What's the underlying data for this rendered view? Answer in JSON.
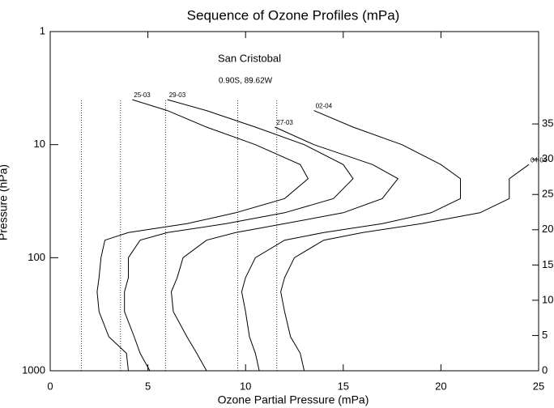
{
  "chart_data": {
    "type": "line",
    "title": "Sequence of Ozone Profiles (mPa)",
    "xlabel": "Ozone Partial Pressure (mPa)",
    "ylabel": "Pressure (hPa)",
    "annotations": [
      "San Cristobal",
      "0.90S, 89.62W"
    ],
    "xlim": [
      0,
      25
    ],
    "xticks": [
      0,
      5,
      10,
      15,
      20,
      25
    ],
    "ylim": [
      1000,
      1
    ],
    "yticks": [
      1,
      10,
      100,
      1000
    ],
    "log_y": true,
    "y2lim": [
      0,
      48.1
    ],
    "y2ticks": [
      0,
      5,
      10,
      15,
      20,
      25,
      30,
      35
    ],
    "grid": false,
    "series": [
      {
        "name": "25-03",
        "color": "#000000",
        "baseline": 1.6,
        "x": [
          4.0,
          3.9,
          3.0,
          2.5,
          2.4,
          2.5,
          2.6,
          2.8,
          4.0,
          7.0,
          9.5,
          12.0,
          13.2,
          12.8,
          10.5,
          8.0,
          6.0,
          4.2
        ],
        "pressure": [
          1000,
          700,
          500,
          300,
          200,
          150,
          100,
          70,
          60,
          50,
          40,
          30,
          20,
          15,
          10,
          7,
          5,
          4
        ]
      },
      {
        "name": "29-03",
        "color": "#000000",
        "baseline": 3.6,
        "x": [
          5.1,
          4.6,
          4.3,
          3.8,
          3.8,
          4.0,
          4.0,
          4.6,
          6.0,
          9.0,
          12.0,
          14.5,
          15.5,
          15.0,
          13.0,
          10.5,
          8.0,
          6.0
        ],
        "pressure": [
          1000,
          700,
          500,
          300,
          200,
          150,
          100,
          70,
          60,
          50,
          40,
          30,
          20,
          15,
          10,
          7,
          5,
          4
        ]
      },
      {
        "name": "27-03",
        "color": "#000000",
        "baseline": 5.9,
        "x": [
          8.0,
          7.5,
          7.0,
          6.3,
          6.2,
          6.5,
          6.8,
          8.0,
          9.5,
          12.0,
          15.0,
          17.0,
          17.8,
          16.5,
          13.5,
          11.5
        ],
        "pressure": [
          1000,
          700,
          500,
          300,
          200,
          150,
          100,
          70,
          60,
          50,
          40,
          30,
          20,
          15,
          10,
          7
        ]
      },
      {
        "name": "02-04",
        "color": "#000000",
        "baseline": 9.6,
        "x": [
          10.7,
          10.5,
          10.2,
          10.0,
          9.8,
          10.0,
          10.5,
          12.0,
          14.0,
          17.0,
          19.5,
          21.0,
          21.0,
          20.0,
          18.0,
          15.5,
          13.5
        ],
        "pressure": [
          1000,
          700,
          500,
          300,
          200,
          150,
          100,
          70,
          60,
          50,
          40,
          30,
          20,
          15,
          10,
          7,
          5
        ]
      },
      {
        "name": "04-04",
        "color": "#000000",
        "baseline": 11.6,
        "x": [
          13.0,
          12.8,
          12.3,
          12.0,
          11.8,
          12.0,
          12.5,
          14.0,
          16.0,
          19.0,
          22.0,
          23.5,
          23.5,
          24.5
        ],
        "pressure": [
          1000,
          700,
          500,
          300,
          200,
          150,
          100,
          70,
          60,
          50,
          40,
          30,
          20,
          15
        ]
      }
    ]
  }
}
